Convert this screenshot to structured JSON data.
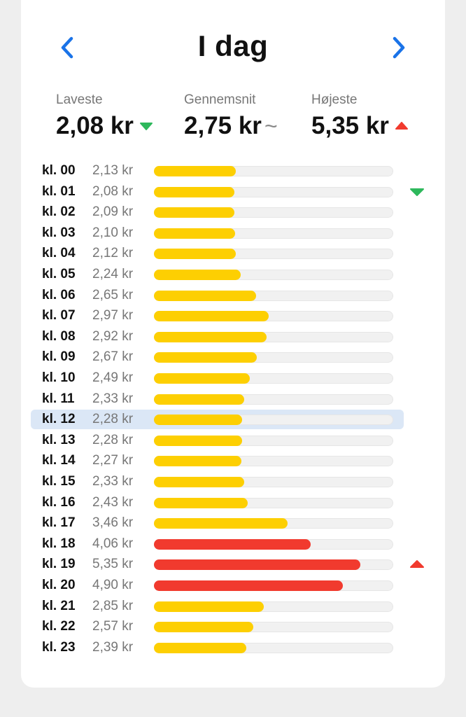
{
  "header": {
    "title": "I dag"
  },
  "stats": {
    "low": {
      "label": "Laveste",
      "value": "2,08 kr"
    },
    "avg": {
      "label": "Gennemsnit",
      "value": "2,75 kr",
      "symbol": "~"
    },
    "high": {
      "label": "Højeste",
      "value": "5,35 kr"
    }
  },
  "scale_max": 6.2,
  "colors": {
    "yellow": "#fdcf02",
    "red": "#f13a2e",
    "green": "#2eb85c",
    "blue": "#1a73e8",
    "highlight": "#dbe7f6"
  },
  "rows": [
    {
      "hour": "kl. 00",
      "price": "2,13 kr",
      "value": 2.13,
      "level": "normal"
    },
    {
      "hour": "kl. 01",
      "price": "2,08 kr",
      "value": 2.08,
      "level": "normal",
      "marker": "lowest"
    },
    {
      "hour": "kl. 02",
      "price": "2,09 kr",
      "value": 2.09,
      "level": "normal"
    },
    {
      "hour": "kl. 03",
      "price": "2,10 kr",
      "value": 2.1,
      "level": "normal"
    },
    {
      "hour": "kl. 04",
      "price": "2,12 kr",
      "value": 2.12,
      "level": "normal"
    },
    {
      "hour": "kl. 05",
      "price": "2,24 kr",
      "value": 2.24,
      "level": "normal"
    },
    {
      "hour": "kl. 06",
      "price": "2,65 kr",
      "value": 2.65,
      "level": "normal"
    },
    {
      "hour": "kl. 07",
      "price": "2,97 kr",
      "value": 2.97,
      "level": "normal"
    },
    {
      "hour": "kl. 08",
      "price": "2,92 kr",
      "value": 2.92,
      "level": "normal"
    },
    {
      "hour": "kl. 09",
      "price": "2,67 kr",
      "value": 2.67,
      "level": "normal"
    },
    {
      "hour": "kl. 10",
      "price": "2,49 kr",
      "value": 2.49,
      "level": "normal"
    },
    {
      "hour": "kl. 11",
      "price": "2,33 kr",
      "value": 2.33,
      "level": "normal"
    },
    {
      "hour": "kl. 12",
      "price": "2,28 kr",
      "value": 2.28,
      "level": "normal",
      "current": true
    },
    {
      "hour": "kl. 13",
      "price": "2,28 kr",
      "value": 2.28,
      "level": "normal"
    },
    {
      "hour": "kl. 14",
      "price": "2,27 kr",
      "value": 2.27,
      "level": "normal"
    },
    {
      "hour": "kl. 15",
      "price": "2,33 kr",
      "value": 2.33,
      "level": "normal"
    },
    {
      "hour": "kl. 16",
      "price": "2,43 kr",
      "value": 2.43,
      "level": "normal"
    },
    {
      "hour": "kl. 17",
      "price": "3,46 kr",
      "value": 3.46,
      "level": "normal"
    },
    {
      "hour": "kl. 18",
      "price": "4,06 kr",
      "value": 4.06,
      "level": "high"
    },
    {
      "hour": "kl. 19",
      "price": "5,35 kr",
      "value": 5.35,
      "level": "high",
      "marker": "highest"
    },
    {
      "hour": "kl. 20",
      "price": "4,90 kr",
      "value": 4.9,
      "level": "high"
    },
    {
      "hour": "kl. 21",
      "price": "2,85 kr",
      "value": 2.85,
      "level": "normal"
    },
    {
      "hour": "kl. 22",
      "price": "2,57 kr",
      "value": 2.57,
      "level": "normal"
    },
    {
      "hour": "kl. 23",
      "price": "2,39 kr",
      "value": 2.39,
      "level": "normal"
    }
  ]
}
